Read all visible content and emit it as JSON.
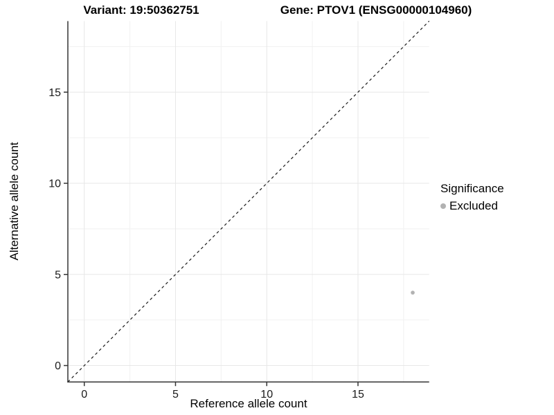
{
  "header": {
    "variant_title": "Variant: 19:50362751",
    "gene_title": "Gene: PTOV1 (ENSG00000104960)"
  },
  "chart_data": {
    "type": "scatter",
    "title": "Variant: 19:50362751    Gene: PTOV1 (ENSG00000104960)",
    "xlabel": "Reference allele count",
    "ylabel": "Alternative allele count",
    "xlim": [
      -0.9,
      18.9
    ],
    "ylim": [
      -0.9,
      18.9
    ],
    "x_ticks": [
      0,
      5,
      10,
      15
    ],
    "y_ticks": [
      0,
      5,
      10,
      15
    ],
    "x_minor": [
      2.5,
      7.5,
      12.5,
      17.5
    ],
    "y_minor": [
      2.5,
      7.5,
      12.5,
      17.5
    ],
    "grid": true,
    "points": [
      {
        "x": 18,
        "y": 4,
        "series": "Excluded"
      }
    ],
    "reference_line": {
      "type": "identity",
      "slope": 1,
      "intercept": 0,
      "style": "dashed"
    },
    "legend": {
      "title": "Significance",
      "position": "right",
      "entries": [
        {
          "label": "Excluded",
          "color": "#b2b2b2"
        }
      ]
    },
    "colors": {
      "point": "#b2b2b2",
      "axis": "#333333",
      "grid_major": "#e7e7e7",
      "grid_minor": "#f1f1f1",
      "dash_line": "#1a1a1a",
      "text": "#000000"
    }
  }
}
